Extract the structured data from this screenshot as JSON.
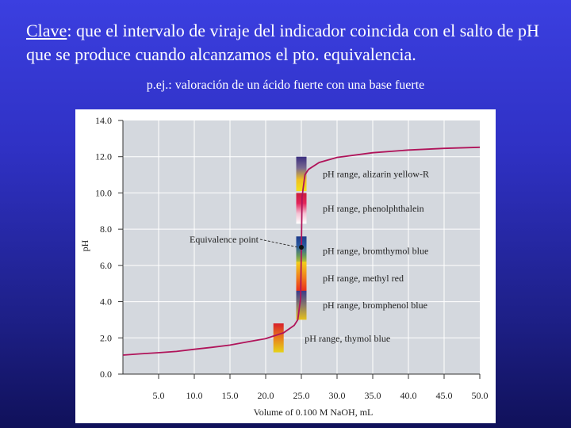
{
  "slide": {
    "heading_key": "Clave",
    "heading_rest": ": que el intervalo de viraje del indicador coincida con el salto de pH que se produce cuando alcanzamos el pto. equivalencia.",
    "subheading": "p.ej.: valoración de un ácido fuerte con una base fuerte"
  },
  "chart_data": {
    "type": "line",
    "title": "",
    "xlabel": "Volume of 0.100 M NaOH, mL",
    "ylabel": "pH",
    "xlim": [
      0,
      50
    ],
    "ylim": [
      0,
      14
    ],
    "x_ticks": [
      "5.0",
      "10.0",
      "15.0",
      "20.0",
      "25.0",
      "30.0",
      "35.0",
      "40.0",
      "45.0",
      "50.0"
    ],
    "y_ticks": [
      "0.0",
      "2.0",
      "4.0",
      "6.0",
      "8.0",
      "10.0",
      "12.0",
      "14.0"
    ],
    "grid": true,
    "series": [
      {
        "x": [
          0,
          2.5,
          5,
          7.5,
          10,
          12.5,
          15,
          17.5,
          20,
          22.5,
          24,
          24.5,
          24.9,
          25.0,
          25.1,
          25.5,
          26,
          27.5,
          30,
          35,
          40,
          45,
          50
        ],
        "y": [
          1.05,
          1.12,
          1.18,
          1.25,
          1.37,
          1.48,
          1.6,
          1.78,
          1.96,
          2.28,
          2.69,
          3.0,
          4.2,
          7.0,
          9.8,
          11.0,
          11.3,
          11.68,
          11.96,
          12.22,
          12.37,
          12.46,
          12.52
        ],
        "color": "#b0145a"
      }
    ],
    "annotations": {
      "equivalence": {
        "label": "Equivalence point",
        "x": 25.0,
        "y": 7.0
      },
      "indicators": [
        {
          "label": "pH range, alizarin yellow-R",
          "x": 25.0,
          "ph_low": 10.1,
          "ph_high": 12.0,
          "colors": [
            "#f2e21a",
            "#f0c020",
            "#7a6a90",
            "#3b2f80"
          ]
        },
        {
          "label": "pH range, phenolphthalein",
          "x": 25.0,
          "ph_low": 8.3,
          "ph_high": 10.0,
          "colors": [
            "#ffffff",
            "#f4c2d4",
            "#e3245a",
            "#c81e3c"
          ]
        },
        {
          "label": "pH range, bromthymol blue",
          "x": 25.0,
          "ph_low": 6.0,
          "ph_high": 7.6,
          "colors": [
            "#e6d21a",
            "#6a9a5a",
            "#2a5aa0",
            "#1c3a8a"
          ]
        },
        {
          "label": "pH range, methyl red",
          "x": 25.0,
          "ph_low": 4.4,
          "ph_high": 6.2,
          "colors": [
            "#e81c1c",
            "#f07a1c",
            "#f2d21a"
          ]
        },
        {
          "label": "pH range, bromphenol blue",
          "x": 25.0,
          "ph_low": 3.0,
          "ph_high": 4.6,
          "colors": [
            "#e6c21a",
            "#8a7a6a",
            "#3a3a8a"
          ]
        },
        {
          "label": "pH range, thymol blue",
          "x": 21.8,
          "ph_low": 1.2,
          "ph_high": 2.8,
          "colors": [
            "#e6d21a",
            "#e8801c",
            "#d81e2a"
          ]
        }
      ]
    }
  }
}
